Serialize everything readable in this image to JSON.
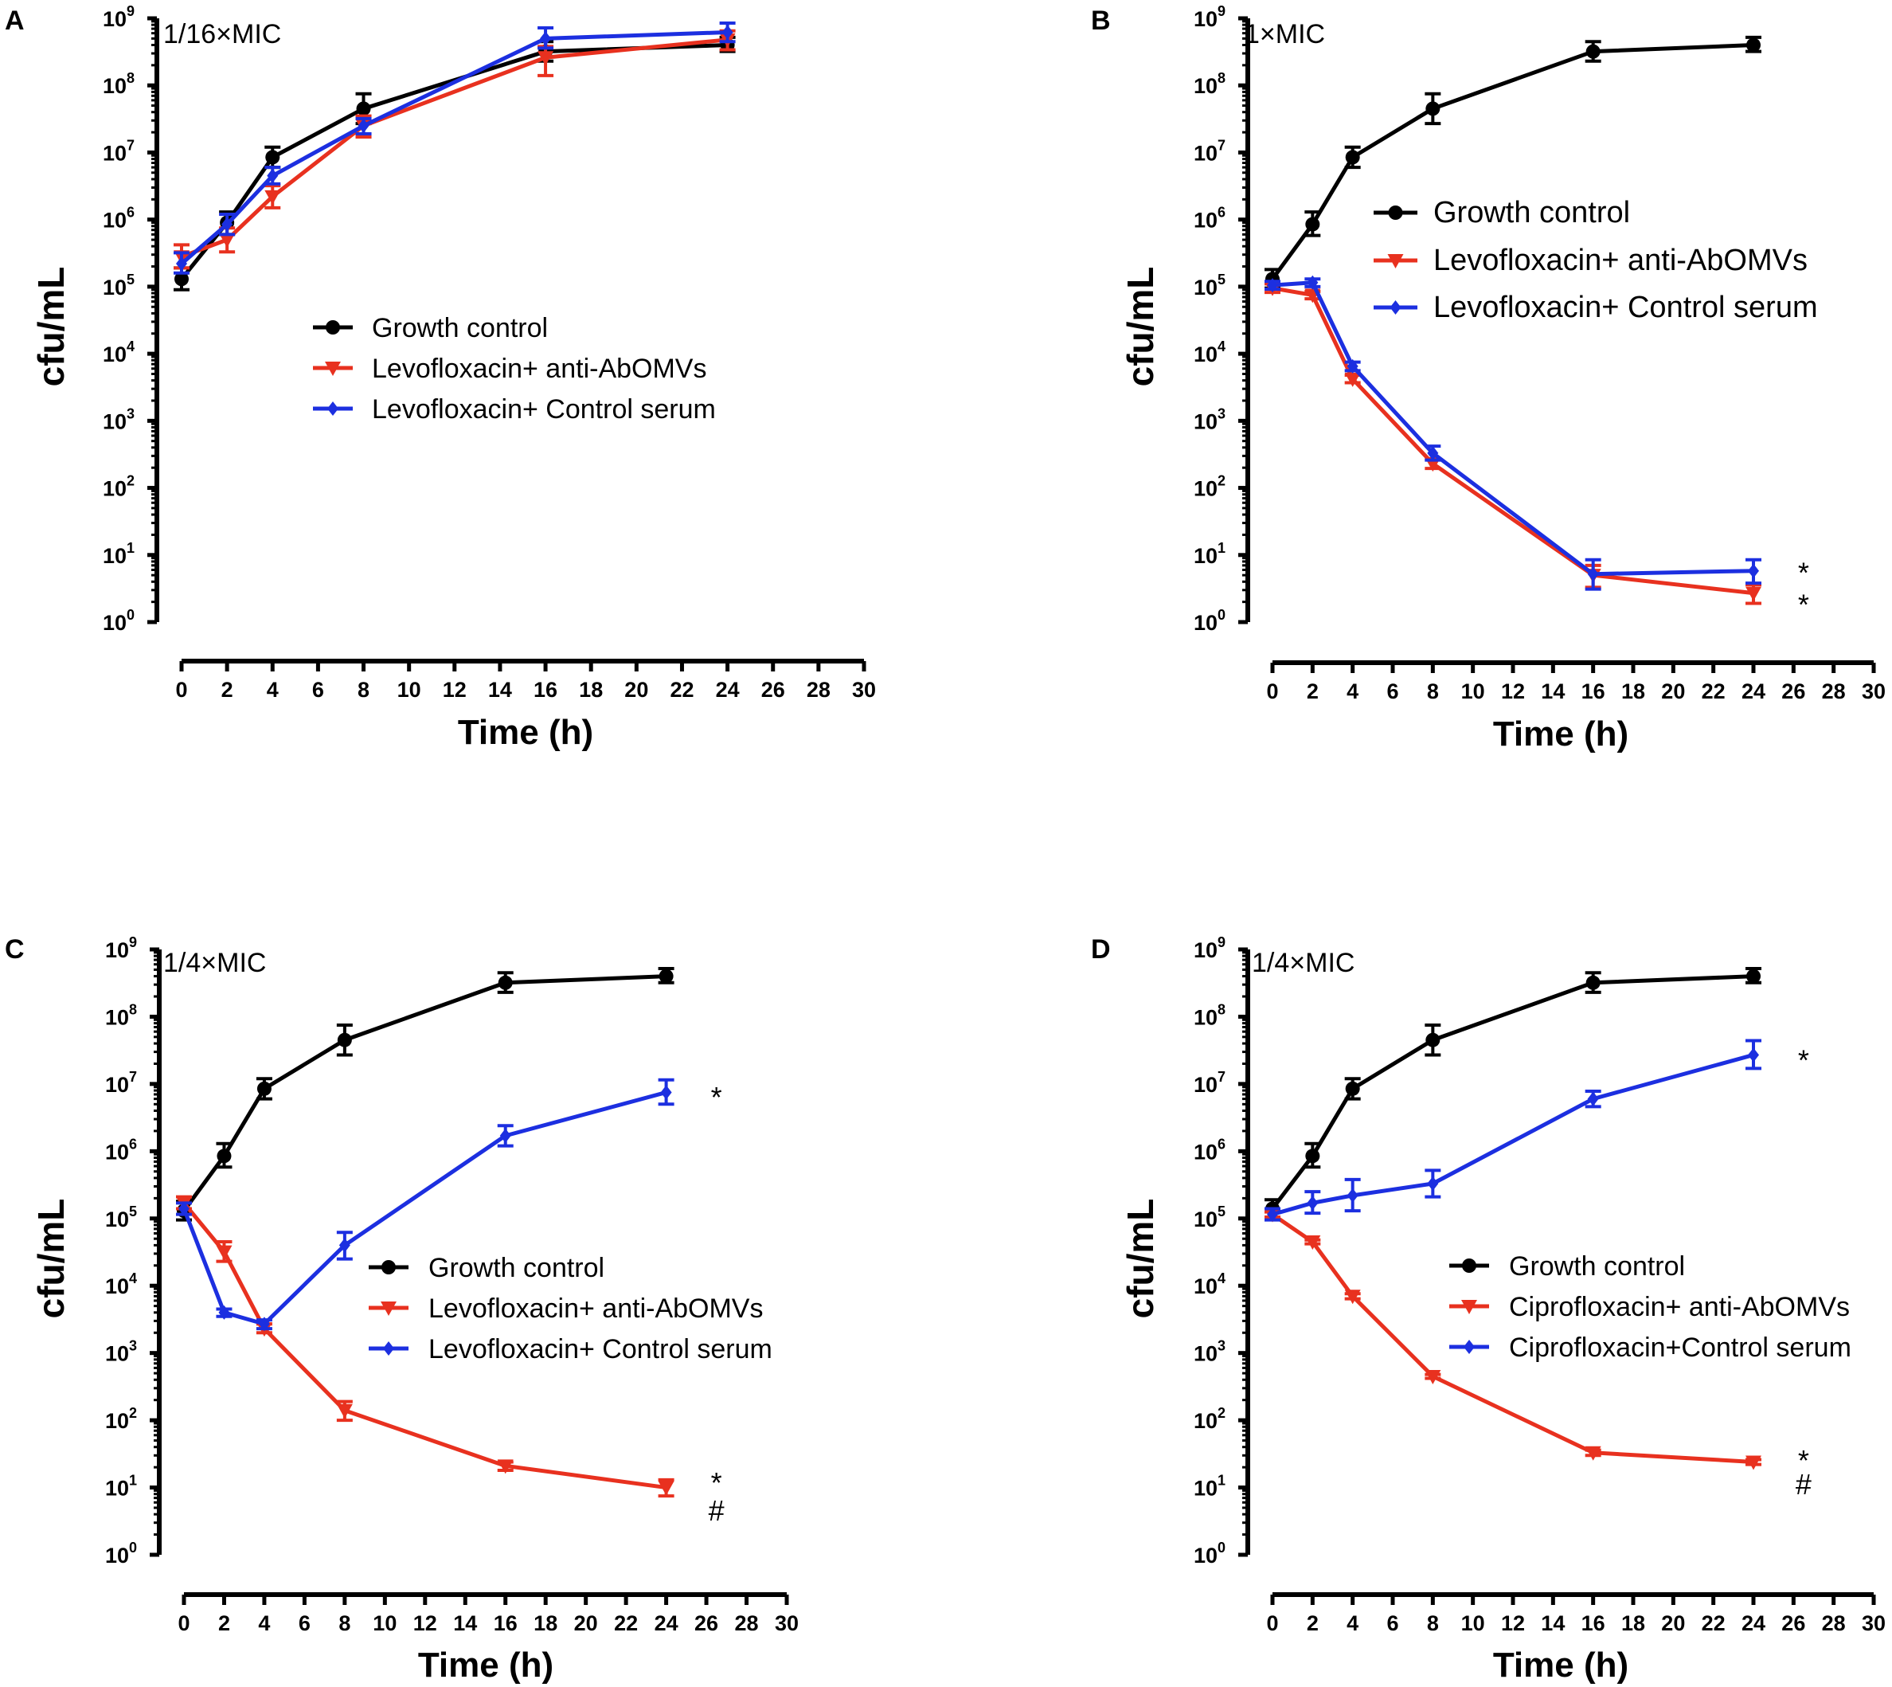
{
  "colors": {
    "growth_control": "#000000",
    "anti_abomvs": "#e8311f",
    "control_serum": "#1c2fe0"
  },
  "chart_data": [
    {
      "type": "line",
      "panel": "A",
      "annotation": "1/16×MIC",
      "xlabel": "Time (h)",
      "ylabel": "cfu/mL",
      "yscale": "log10",
      "ylim": [
        1,
        1000000000
      ],
      "xlim": [
        0,
        30
      ],
      "xticks": [
        0,
        2,
        4,
        6,
        8,
        10,
        12,
        14,
        16,
        18,
        20,
        22,
        24,
        26,
        28,
        30
      ],
      "ytick_exponents": [
        0,
        1,
        2,
        3,
        4,
        5,
        6,
        7,
        8,
        9
      ],
      "ytick_base": "10",
      "legend_position": "center",
      "series": [
        {
          "name": "Growth control",
          "key": "growth_control",
          "marker": "circle",
          "x": [
            0,
            2,
            4,
            8,
            16,
            24
          ],
          "y": [
            130000,
            900000,
            8500000,
            45000000,
            320000000,
            400000000
          ],
          "err_up": [
            190000,
            1300000,
            12000000,
            75000000,
            450000000,
            520000000
          ],
          "err_down": [
            90000,
            600000,
            6000000,
            27000000,
            230000000,
            320000000
          ]
        },
        {
          "name": "Levofloxacin+ anti-AbOMVs",
          "key": "anti_abomvs",
          "marker": "triangle-down",
          "x": [
            0,
            2,
            4,
            8,
            16,
            24
          ],
          "y": [
            280000,
            500000,
            2200000,
            25000000,
            260000000,
            480000000
          ],
          "err_up": [
            420000,
            750000,
            3200000,
            35000000,
            380000000,
            650000000
          ],
          "err_down": [
            190000,
            330000,
            1500000,
            17000000,
            140000000,
            340000000
          ]
        },
        {
          "name": "Levofloxacin+ Control serum",
          "key": "control_serum",
          "marker": "diamond",
          "x": [
            0,
            2,
            4,
            8,
            16,
            24
          ],
          "y": [
            220000,
            850000,
            4500000,
            25000000,
            500000000,
            620000000
          ],
          "err_up": [
            320000,
            1200000,
            6000000,
            32000000,
            720000000,
            850000000
          ],
          "err_down": [
            160000,
            600000,
            3400000,
            19000000,
            360000000,
            450000000
          ]
        }
      ],
      "significance": []
    },
    {
      "type": "line",
      "panel": "B",
      "annotation": "1×MIC",
      "xlabel": "Time (h)",
      "ylabel": "cfu/mL",
      "yscale": "log10",
      "ylim": [
        1,
        1000000000
      ],
      "xlim": [
        0,
        30
      ],
      "xticks": [
        0,
        2,
        4,
        6,
        8,
        10,
        12,
        14,
        16,
        18,
        20,
        22,
        24,
        26,
        28,
        30
      ],
      "ytick_exponents": [
        0,
        1,
        2,
        3,
        4,
        5,
        6,
        7,
        8,
        9
      ],
      "ytick_base": "10",
      "legend_position": "top-right",
      "series": [
        {
          "name": "Growth control",
          "key": "growth_control",
          "marker": "circle",
          "x": [
            0,
            2,
            4,
            8,
            16,
            24
          ],
          "y": [
            130000,
            850000,
            8500000,
            45000000,
            320000000,
            400000000
          ],
          "err_up": [
            180000,
            1300000,
            12000000,
            75000000,
            450000000,
            520000000
          ],
          "err_down": [
            95000,
            580000,
            6000000,
            27000000,
            230000000,
            320000000
          ]
        },
        {
          "name": "Levofloxacin+ anti-AbOMVs",
          "key": "anti_abomvs",
          "marker": "triangle-down",
          "x": [
            0,
            2,
            4,
            8,
            16,
            24
          ],
          "y": [
            95000,
            75000,
            4200,
            230,
            5,
            2.7
          ],
          "err_up": [
            110000,
            85000,
            4800,
            270,
            7,
            3.6
          ],
          "err_down": [
            82000,
            66000,
            3700,
            195,
            3.3,
            1.9
          ]
        },
        {
          "name": "Levofloxacin+ Control serum",
          "key": "control_serum",
          "marker": "diamond",
          "x": [
            0,
            2,
            4,
            8,
            16,
            24
          ],
          "y": [
            105000,
            115000,
            6500,
            330,
            5.2,
            5.8
          ],
          "err_up": [
            120000,
            130000,
            7500,
            420,
            8.5,
            8.5
          ],
          "err_down": [
            92000,
            100000,
            5600,
            260,
            3.1,
            3.8
          ]
        }
      ],
      "significance": [
        {
          "symbol": "*",
          "x": 26.5,
          "y": 6
        },
        {
          "symbol": "*",
          "x": 26.5,
          "y": 2
        }
      ]
    },
    {
      "type": "line",
      "panel": "C",
      "annotation": "1/4×MIC",
      "xlabel": "Time (h)",
      "ylabel": "cfu/mL",
      "yscale": "log10",
      "ylim": [
        1,
        1000000000
      ],
      "xlim": [
        0,
        30
      ],
      "xticks": [
        0,
        2,
        4,
        6,
        8,
        10,
        12,
        14,
        16,
        18,
        20,
        22,
        24,
        26,
        28,
        30
      ],
      "ytick_exponents": [
        0,
        1,
        2,
        3,
        4,
        5,
        6,
        7,
        8,
        9
      ],
      "ytick_base": "10",
      "legend_position": "center-right",
      "series": [
        {
          "name": "Growth control",
          "key": "growth_control",
          "marker": "circle",
          "x": [
            0,
            2,
            4,
            8,
            16,
            24
          ],
          "y": [
            130000,
            850000,
            8500000,
            45000000,
            320000000,
            400000000
          ],
          "err_up": [
            180000,
            1300000,
            12000000,
            75000000,
            450000000,
            520000000
          ],
          "err_down": [
            95000,
            580000,
            6000000,
            27000000,
            230000000,
            320000000
          ]
        },
        {
          "name": "Levofloxacin+ anti-AbOMVs",
          "key": "anti_abomvs",
          "marker": "triangle-down",
          "x": [
            0,
            2,
            4,
            8,
            16,
            24
          ],
          "y": [
            170000,
            32000,
            2300,
            140,
            21,
            10
          ],
          "err_up": [
            210000,
            45000,
            2700,
            190,
            24,
            13
          ],
          "err_down": [
            140000,
            23000,
            2000,
            100,
            18,
            7.5
          ]
        },
        {
          "name": "Levofloxacin+ Control serum",
          "key": "control_serum",
          "marker": "diamond",
          "x": [
            0,
            2,
            4,
            8,
            16,
            24
          ],
          "y": [
            140000,
            4000,
            2700,
            40000,
            1700000,
            7500000
          ],
          "err_up": [
            170000,
            4500,
            3100,
            62000,
            2400000,
            11500000
          ],
          "err_down": [
            115000,
            3500,
            2300,
            25000,
            1200000,
            5000000
          ]
        }
      ],
      "significance": [
        {
          "symbol": "*",
          "x": 26.5,
          "y": 7000000
        },
        {
          "symbol": "*",
          "x": 26.5,
          "y": 13
        },
        {
          "symbol": "#",
          "x": 26.5,
          "y": 4.5
        }
      ]
    },
    {
      "type": "line",
      "panel": "D",
      "annotation": "1/4×MIC",
      "xlabel": "Time (h)",
      "ylabel": "cfu/mL",
      "yscale": "log10",
      "ylim": [
        1,
        1000000000
      ],
      "xlim": [
        0,
        30
      ],
      "xticks": [
        0,
        2,
        4,
        6,
        8,
        10,
        12,
        14,
        16,
        18,
        20,
        22,
        24,
        26,
        28,
        30
      ],
      "ytick_exponents": [
        0,
        1,
        2,
        3,
        4,
        5,
        6,
        7,
        8,
        9
      ],
      "ytick_base": "10",
      "legend_position": "center-right",
      "series": [
        {
          "name": "Growth control",
          "key": "growth_control",
          "marker": "circle",
          "x": [
            0,
            2,
            4,
            8,
            16,
            24
          ],
          "y": [
            140000,
            850000,
            8500000,
            45000000,
            320000000,
            400000000
          ],
          "err_up": [
            190000,
            1300000,
            12000000,
            75000000,
            450000000,
            520000000
          ],
          "err_down": [
            100000,
            580000,
            6000000,
            27000000,
            230000000,
            320000000
          ]
        },
        {
          "name": "Ciprofloxacin+ anti-AbOMVs",
          "key": "anti_abomvs",
          "marker": "triangle-down",
          "x": [
            0,
            2,
            4,
            8,
            16,
            24
          ],
          "y": [
            115000,
            45000,
            7000,
            450,
            33,
            24
          ],
          "err_up": [
            125000,
            48000,
            7600,
            480,
            36,
            26
          ],
          "err_down": [
            105000,
            42000,
            6400,
            420,
            30,
            22
          ]
        },
        {
          "name": "Ciprofloxacin+Control serum",
          "key": "control_serum",
          "marker": "diamond",
          "x": [
            0,
            2,
            4,
            8,
            16,
            24
          ],
          "y": [
            115000,
            170000,
            220000,
            330000,
            6000000,
            27000000
          ],
          "err_up": [
            140000,
            250000,
            380000,
            520000,
            7800000,
            44000000
          ],
          "err_down": [
            95000,
            120000,
            130000,
            210000,
            4600000,
            17000000
          ]
        }
      ],
      "significance": [
        {
          "symbol": "*",
          "x": 26.5,
          "y": 25000000
        },
        {
          "symbol": "*",
          "x": 26.5,
          "y": 28
        },
        {
          "symbol": "#",
          "x": 26.5,
          "y": 11
        }
      ]
    }
  ]
}
